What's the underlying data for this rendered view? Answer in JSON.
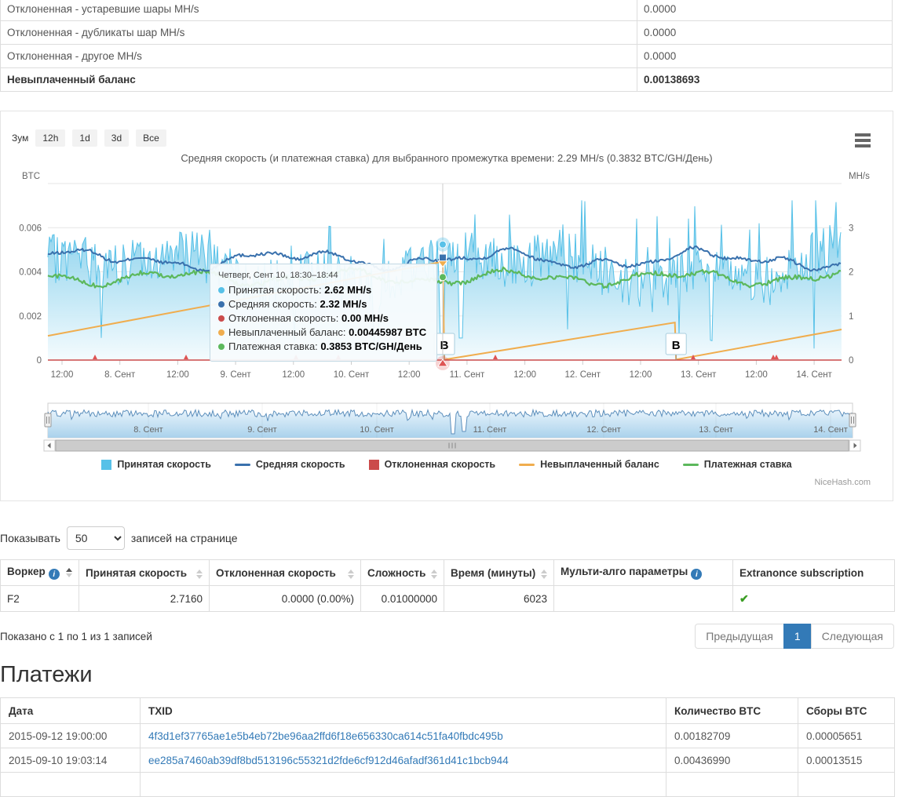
{
  "summary_table": {
    "rows": [
      {
        "label": "Отклоненная - устаревшие шары MH/s",
        "value": "0.0000",
        "bold": false
      },
      {
        "label": "Отклоненная - дубликаты шар MH/s",
        "value": "0.0000",
        "bold": false
      },
      {
        "label": "Отклоненная - другое MH/s",
        "value": "0.0000",
        "bold": false
      },
      {
        "label": "Невыплаченный баланс",
        "value": "0.00138693",
        "bold": true
      }
    ]
  },
  "chart": {
    "zoom_label": "Зум",
    "zoom_buttons": [
      "12h",
      "1d",
      "3d",
      "Все"
    ],
    "menu_icon": "hamburger-icon",
    "credit": "NiceHash.com"
  },
  "chart_data": {
    "type": "line",
    "title": "Средняя скорость (и платежная ставка) для выбранного промежутка времени: 2.29 MH/s (0.3832 BTC/GH/День)",
    "y_left": {
      "title": "BTC",
      "ticks": [
        "0",
        "0.002",
        "0.004",
        "0.006"
      ],
      "max": 0.008
    },
    "y_right": {
      "title": "MH/s",
      "ticks": [
        "0",
        "1",
        "2",
        "3"
      ],
      "max": 4
    },
    "x_labels": [
      "12:00",
      "8. Сент",
      "12:00",
      "9. Сент",
      "12:00",
      "10. Сент",
      "12:00",
      "11. Сент",
      "12:00",
      "12. Сент",
      "12:00",
      "13. Сент",
      "12:00",
      "14. Сент"
    ],
    "navigator_labels": [
      "8. Сент",
      "9. Сент",
      "10. Сент",
      "11. Сент",
      "12. Сент",
      "13. Сент",
      "14. Сент"
    ],
    "grid": true,
    "legend_position": "bottom",
    "series": [
      {
        "name": "Принятая скорость",
        "color": "#57c1e8",
        "type": "area",
        "axis": "MH/s",
        "swatch": "square",
        "mean": 2.29,
        "range": [
          0.2,
          3.6
        ]
      },
      {
        "name": "Средняя скорость",
        "color": "#3a71ad",
        "type": "line",
        "axis": "MH/s",
        "swatch": "line",
        "mean": 2.3
      },
      {
        "name": "Отклоненная скорость",
        "color": "#cb4b4b",
        "type": "line",
        "axis": "MH/s",
        "swatch": "square",
        "mean": 0.0
      },
      {
        "name": "Невыплаченный баланс",
        "color": "#f0ad4e",
        "type": "line",
        "axis": "BTC",
        "swatch": "line",
        "points": [
          [
            0,
            0.0011
          ],
          [
            0.4975,
            0.00446
          ],
          [
            0.4995,
            2e-05
          ],
          [
            0.79,
            0.0017
          ],
          [
            0.7915,
            2e-05
          ],
          [
            1,
            0.00138693
          ]
        ]
      },
      {
        "name": "Платежная ставка",
        "color": "#5cb85c",
        "type": "line",
        "axis": "BTC/GH/День",
        "swatch": "line",
        "mean": 0.383
      }
    ],
    "flags": [
      {
        "symbol": "B",
        "x": 0.4995
      },
      {
        "symbol": "B",
        "x": 0.7915
      }
    ],
    "crosshair_x": 0.4975,
    "tooltip": {
      "header": "Четверг, Сент 10, 18:30–18:44",
      "rows": [
        {
          "name": "Принятая скорость",
          "value": "2.62 MH/s",
          "color": "#57c1e8"
        },
        {
          "name": "Средняя скорость",
          "value": "2.32 MH/s",
          "color": "#3a71ad"
        },
        {
          "name": "Отклоненная скорость",
          "value": "0.00 MH/s",
          "color": "#cb4b4b"
        },
        {
          "name": "Невыплаченный баланс",
          "value": "0.00445987 BTC",
          "color": "#f0ad4e"
        },
        {
          "name": "Платежная ставка",
          "value": "0.3853 BTC/GH/День",
          "color": "#5cb85c"
        }
      ]
    }
  },
  "page_size": {
    "label_before": "Показывать",
    "value": "50",
    "label_after": "записей на странице"
  },
  "workers_table": {
    "columns": [
      {
        "label": "Воркер",
        "info": true,
        "sort": "active"
      },
      {
        "label": "Принятая скорость",
        "sort": "inactive"
      },
      {
        "label": "Отклоненная скорость",
        "sort": "inactive"
      },
      {
        "label": "Сложность",
        "sort": "inactive"
      },
      {
        "label": "Время (минуты)",
        "sort": "inactive"
      },
      {
        "label": "Мульти-алго параметры",
        "info": true
      },
      {
        "label": "Extranonce subscription"
      }
    ],
    "rows": [
      {
        "worker": "F2",
        "accepted": "2.7160",
        "rejected": "0.0000 (0.00%)",
        "difficulty": "0.01000000",
        "time": "6023",
        "multialgo": "",
        "extranonce_check": true
      }
    ]
  },
  "workers_footer": {
    "info": "Показано с 1 по 1 из 1 записей",
    "prev": "Предыдущая",
    "page": "1",
    "next": "Следующая"
  },
  "payments": {
    "heading": "Платежи",
    "columns": [
      "Дата",
      "TXID",
      "Количество BTC",
      "Сборы BTC"
    ],
    "rows": [
      {
        "date": "2015-09-12 19:00:00",
        "txid": "4f3d1ef37765ae1e5b4eb72be96aa2ffd6f18e656330ca614c51fa40fbdc495b",
        "amount": "0.00182709",
        "fee": "0.00005651"
      },
      {
        "date": "2015-09-10 19:03:14",
        "txid": "ee285a7460ab39df8bd513196c55321d2fde6cf912d46afadf361d41c1bcb944",
        "amount": "0.00436990",
        "fee": "0.00013515"
      }
    ]
  }
}
